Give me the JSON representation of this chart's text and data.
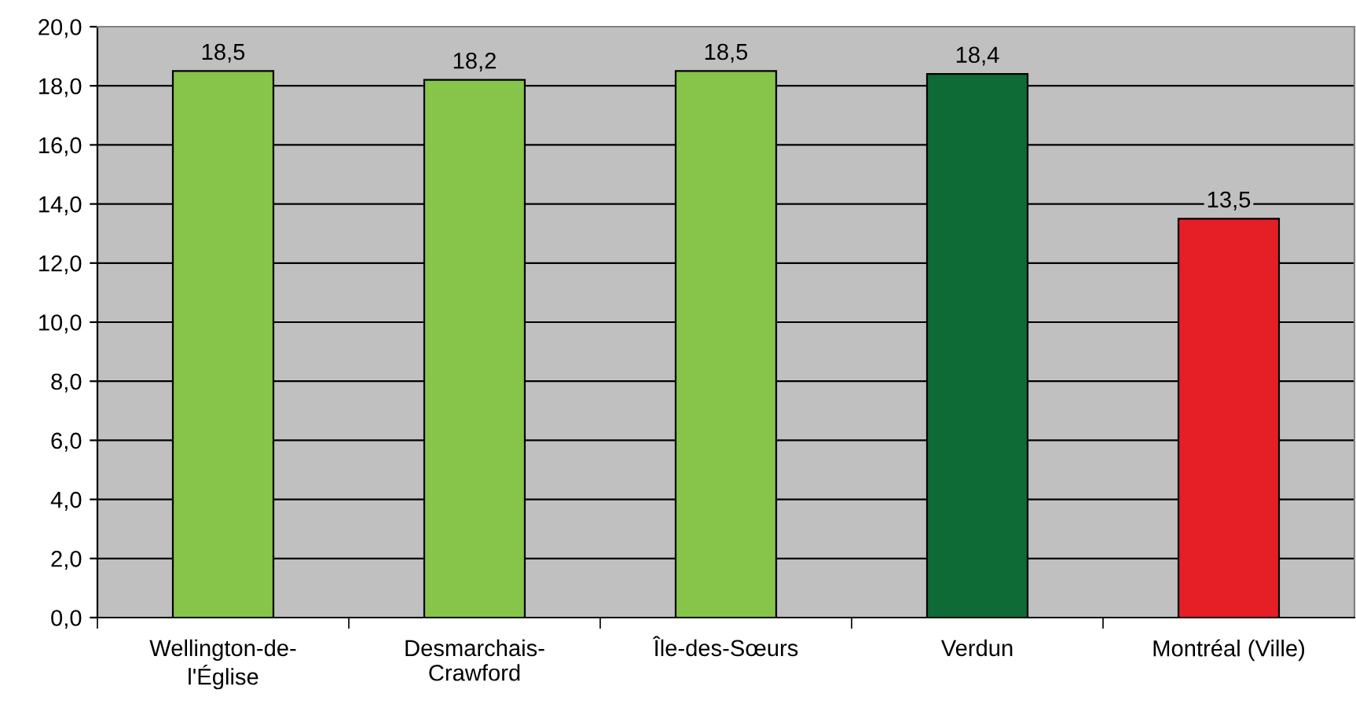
{
  "chart_data": {
    "type": "bar",
    "categories": [
      "Wellington-de-\nl'Église",
      "Desmarchais-\nCrawford",
      "Île-des-Sœurs",
      "Verdun",
      "Montréal (Ville)"
    ],
    "values": [
      18.5,
      18.2,
      18.5,
      18.4,
      13.5
    ],
    "colors": [
      "#86c44a",
      "#86c44a",
      "#86c44a",
      "#0e6b35",
      "#e61e26"
    ],
    "value_labels": [
      "18,5",
      "18,2",
      "18,5",
      "18,4",
      "13,5"
    ],
    "ylim": [
      0,
      20
    ],
    "yticks": [
      {
        "value": 0,
        "label": "0,0"
      },
      {
        "value": 2,
        "label": "2,0"
      },
      {
        "value": 4,
        "label": "4,0"
      },
      {
        "value": 6,
        "label": "6,0"
      },
      {
        "value": 8,
        "label": "8,0"
      },
      {
        "value": 10,
        "label": "10,0"
      },
      {
        "value": 12,
        "label": "12,0"
      },
      {
        "value": 14,
        "label": "14,0"
      },
      {
        "value": 16,
        "label": "16,0"
      },
      {
        "value": 18,
        "label": "18,0"
      },
      {
        "value": 20,
        "label": "20,0"
      }
    ],
    "grid": "y",
    "legend": false
  }
}
